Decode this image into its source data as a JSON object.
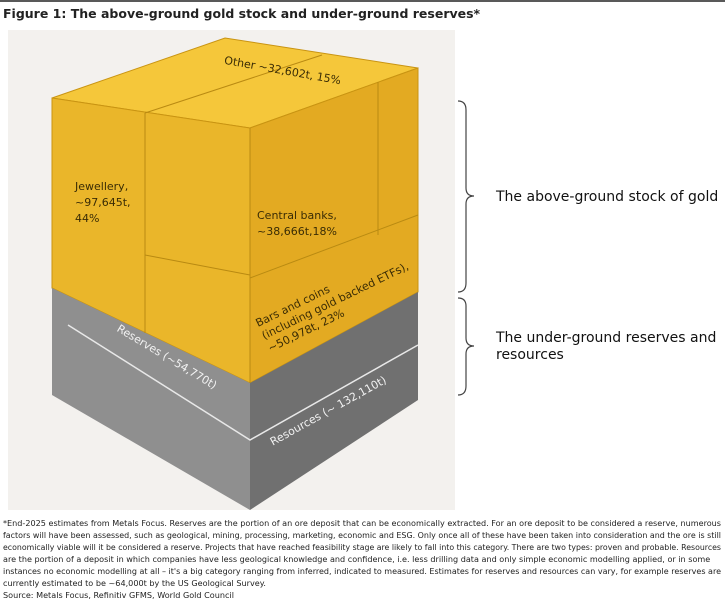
{
  "title": "Figure 1: The above-ground gold stock and under-ground reserves*",
  "cube": {
    "other": "Other ~32,602t, 15%",
    "jewellery": [
      "Jewellery,",
      "~97,645t,",
      "44%"
    ],
    "central_banks": [
      "Central banks,",
      "~38,666t,18%"
    ],
    "bars_and_coins": [
      "Bars and coins",
      "(including gold backed ETFs),",
      "~50,978t, 23%"
    ],
    "reserves": "Reserves (~54,770t)",
    "resources": "Resources (~ 132,110t)"
  },
  "brackets": {
    "above_ground": [
      "The above-ground stock of gold"
    ],
    "under_ground": [
      "The under-ground reserves and",
      "resources"
    ]
  },
  "footnote": [
    "*End-2025 estimates from Metals Focus. Reserves are the portion of an ore deposit that can be economically extracted. For an ore deposit to be considered a reserve, numerous",
    "factors will have been assessed, such as geological, mining, processing, marketing, economic and ESG. Only once all of these have been taken into consideration and the ore is still",
    "economically viable will it be considered a reserve. Projects that have reached feasibility stage are likely to fall into this category. There are two types: proven and probable. Resources",
    "are the portion of a deposit in which companies have less geological knowledge and confidence, i.e. less drilling data and only simple economic modelling applied, or in some",
    "instances no economic modelling at all – it's a big category ranging from inferred, indicated to measured. Estimates for reserves and resources can vary, for example reserves are",
    "currently estimated to be ~64,000t by the US Geological Survey."
  ],
  "source": "Source: Metals Focus, Refinitiv GFMS, World Gold Council"
}
